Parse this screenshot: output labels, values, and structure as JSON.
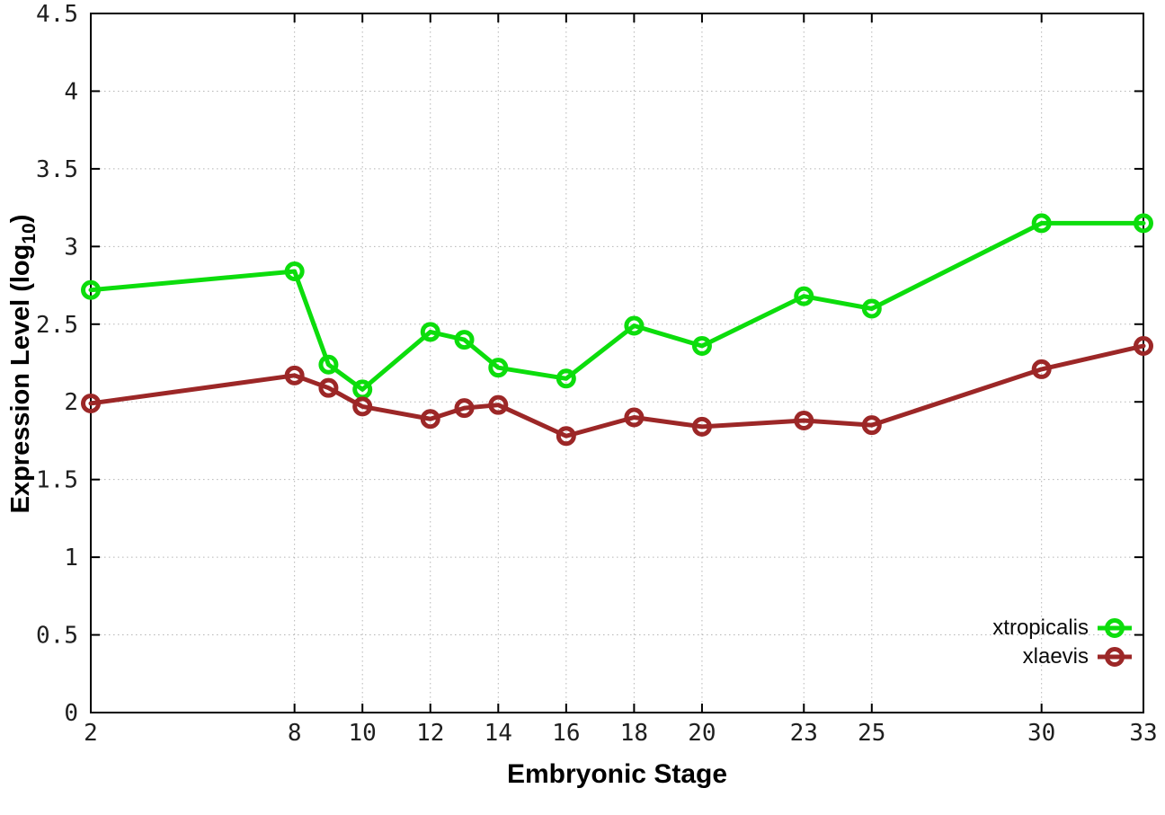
{
  "figure": {
    "background": "#ffffff",
    "ylabel": {
      "prefix": "Expression Level (log",
      "sub": "10",
      "suffix": ")"
    }
  },
  "chart_data": {
    "type": "line",
    "title": "",
    "xlabel": "Embryonic Stage",
    "ylabel": "Expression Level (log10)",
    "x": [
      2,
      8,
      9,
      10,
      12,
      13,
      14,
      16,
      18,
      20,
      23,
      25,
      30,
      33
    ],
    "series": [
      {
        "name": "xtropicalis",
        "color": "#0cdd0c",
        "values": [
          2.72,
          2.84,
          2.24,
          2.08,
          2.45,
          2.4,
          2.22,
          2.15,
          2.49,
          2.36,
          2.68,
          2.6,
          3.15,
          3.15
        ]
      },
      {
        "name": "xlaevis",
        "color": "#9c2727",
        "values": [
          1.99,
          2.17,
          2.09,
          1.97,
          1.89,
          1.96,
          1.98,
          1.78,
          1.9,
          1.84,
          1.88,
          1.85,
          2.21,
          2.36
        ]
      }
    ],
    "xlim": [
      2,
      33
    ],
    "ylim": [
      0,
      4.5
    ],
    "xticks": [
      2,
      8,
      10,
      12,
      14,
      16,
      18,
      20,
      23,
      25,
      30,
      33
    ],
    "yticks": [
      0,
      0.5,
      1,
      1.5,
      2,
      2.5,
      3,
      3.5,
      4,
      4.5
    ],
    "grid": true,
    "grid_style": "dotted",
    "marker": "open-circle",
    "legend_position": "bottom-right"
  }
}
